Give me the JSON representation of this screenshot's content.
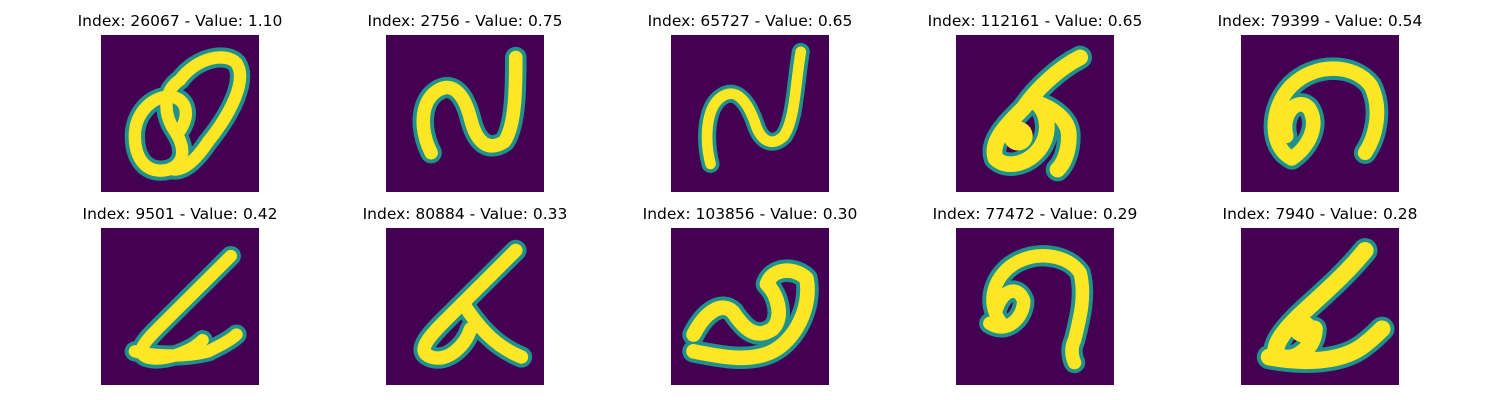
{
  "colormap": {
    "background": "#440154",
    "mid": "#21918c",
    "high": "#fde725"
  },
  "panels": [
    {
      "index": 26067,
      "value": "1.10",
      "title": "Index: 26067 - Value: 1.10"
    },
    {
      "index": 2756,
      "value": "0.75",
      "title": "Index: 2756 - Value: 0.75"
    },
    {
      "index": 65727,
      "value": "0.65",
      "title": "Index: 65727 - Value: 0.65"
    },
    {
      "index": 112161,
      "value": "0.65",
      "title": "Index: 112161 - Value: 0.65"
    },
    {
      "index": 79399,
      "value": "0.54",
      "title": "Index: 79399 - Value: 0.54"
    },
    {
      "index": 9501,
      "value": "0.42",
      "title": "Index: 9501 - Value: 0.42"
    },
    {
      "index": 80884,
      "value": "0.33",
      "title": "Index: 80884 - Value: 0.33"
    },
    {
      "index": 103856,
      "value": "0.30",
      "title": "Index: 103856 - Value: 0.30"
    },
    {
      "index": 77472,
      "value": "0.29",
      "title": "Index: 77472 - Value: 0.29"
    },
    {
      "index": 7940,
      "value": "0.28",
      "title": "Index: 7940 - Value: 0.28"
    }
  ]
}
